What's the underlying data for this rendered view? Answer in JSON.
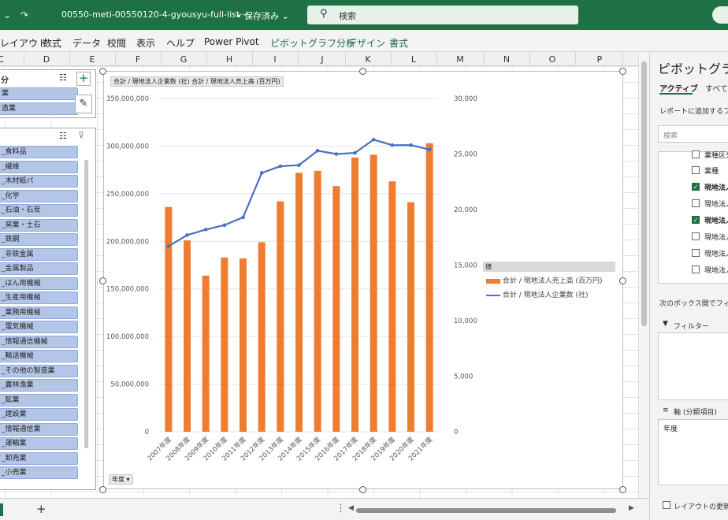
{
  "titlebar": {
    "qa_chevron": "⌄",
    "qa_redo": "↷",
    "filename": "00550-meti-00550120-4-gyousyu-full-list···",
    "saved": "• 保存済み ⌄",
    "search_placeholder": "検索"
  },
  "ribbon": {
    "tabs": [
      "レイアウト",
      "数式",
      "データ",
      "校閲",
      "表示",
      "ヘルプ",
      "Power Pivot"
    ],
    "context_tabs": [
      "ピボットグラフ分析",
      "デザイン",
      "書式"
    ]
  },
  "columns": [
    "C",
    "D",
    "E",
    "F",
    "G",
    "H",
    "I",
    "J",
    "K",
    "L",
    "M",
    "N",
    "O",
    "P"
  ],
  "slicer_top": {
    "header": "分",
    "items": [
      "業",
      "造業"
    ]
  },
  "slicer_main": {
    "items": [
      "_食料品",
      "_繊維",
      "_木材紙パ",
      "_化学",
      "_石油・石炭",
      "_窯業・土石",
      "_鉄鋼",
      "_非鉄金属",
      "_金属製品",
      "_はん用機械",
      "_生産用機械",
      "_業務用機械",
      "_電気機械",
      "_情報通信機械",
      "_輸送機械",
      "_その他の製造業",
      "_農林漁業",
      "_鉱業",
      "_建設業",
      "_情報通信業",
      "_運輸業",
      "_卸売業",
      "_小売業"
    ]
  },
  "chart": {
    "field_button": "合計 / 現地法人企業数 (社)  合計 / 現地法人売上高 (百万円)",
    "axis_button": "年度 ▾",
    "legend_title": "値",
    "legend_bar": "合計 / 現地法人売上高 (百万円)",
    "legend_line": "合計 / 現地法人企業数 (社)"
  },
  "chart_data": {
    "type": "bar",
    "title": "",
    "categories": [
      "2007年度",
      "2008年度",
      "2009年度",
      "2010年度",
      "2011年度",
      "2012年度",
      "2013年度",
      "2014年度",
      "2015年度",
      "2016年度",
      "2017年度",
      "2018年度",
      "2019年度",
      "2020年度",
      "2021年度"
    ],
    "series": [
      {
        "name": "合計 / 現地法人売上高 (百万円)",
        "kind": "bar",
        "axis": "left",
        "color": "#ed7d31",
        "values": [
          236000000,
          201000000,
          164000000,
          183000000,
          182000000,
          199000000,
          242000000,
          272000000,
          274000000,
          258000000,
          288000000,
          291000000,
          263000000,
          241000000,
          303000000
        ]
      },
      {
        "name": "合計 / 現地法人企業数 (社)",
        "kind": "line",
        "axis": "right",
        "color": "#4472c4",
        "values": [
          16700,
          17700,
          18200,
          18600,
          19300,
          23300,
          23900,
          24000,
          25300,
          25000,
          25100,
          26300,
          25800,
          25800,
          25400
        ]
      }
    ],
    "left_axis": {
      "min": 0,
      "max": 350000000,
      "ticks": [
        "0",
        "50,000,000",
        "100,000,000",
        "150,000,000",
        "200,000,000",
        "250,000,000",
        "300,000,000",
        "350,000,000"
      ]
    },
    "right_axis": {
      "min": 0,
      "max": 30000,
      "ticks": [
        "0",
        "5,000",
        "10,000",
        "15,000",
        "20,000",
        "25,000",
        "30,000"
      ]
    },
    "legend": "right"
  },
  "pane": {
    "title": "ピボットグラフ",
    "tab_active": "アクティブ",
    "tab_all": "すべて",
    "report_filter_hint": "レポートに追加するフィ",
    "search_placeholder": "検索",
    "fields": [
      {
        "label": "業種区分",
        "checked": false,
        "bold": false
      },
      {
        "label": "業種",
        "checked": false,
        "bold": false
      },
      {
        "label": "現地法人企",
        "checked": true,
        "bold": true
      },
      {
        "label": "現地法人売",
        "checked": false,
        "bold": false
      },
      {
        "label": "現地法人売",
        "checked": true,
        "bold": true
      },
      {
        "label": "現地法人異",
        "checked": false,
        "bold": false
      },
      {
        "label": "現地法人異",
        "checked": false,
        "bold": false
      },
      {
        "label": "現地法人常",
        "checked": false,
        "bold": false
      }
    ],
    "drag_hint": "次のボックス間でフィー",
    "filter_label": "フィルター",
    "axis_label": "軸 (分類項目)",
    "axis_value": "年度",
    "defer_label": "レイアウトの更新を"
  },
  "bottom": {
    "add_sheet": "+",
    "dots": "⋮"
  }
}
